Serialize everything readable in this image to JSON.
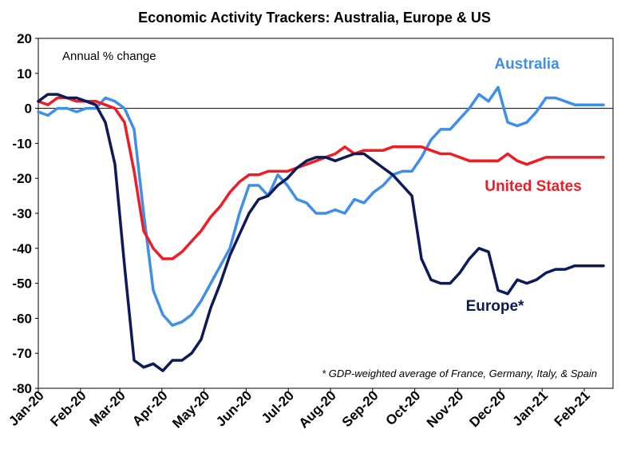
{
  "chart_data": {
    "type": "line",
    "title": "Economic Activity Trackers: Australia, Europe & US",
    "unit_label": "Annual % change",
    "footnote": "* GDP-weighted average of France, Germany, Italy, & Spain",
    "ylim": [
      -80,
      20
    ],
    "yticks": [
      20,
      10,
      0,
      -10,
      -20,
      -30,
      -40,
      -50,
      -60,
      -70,
      -80
    ],
    "xlim": [
      0,
      60
    ],
    "xticks": [
      {
        "label": "Jan-20",
        "x": 0
      },
      {
        "label": "Feb-20",
        "x": 4.4
      },
      {
        "label": "Mar-20",
        "x": 8.5
      },
      {
        "label": "Apr-20",
        "x": 12.9
      },
      {
        "label": "May-20",
        "x": 17.3
      },
      {
        "label": "Jun-20",
        "x": 21.7
      },
      {
        "label": "Jul-20",
        "x": 26.1
      },
      {
        "label": "Aug-20",
        "x": 30.5
      },
      {
        "label": "Sep-20",
        "x": 34.9
      },
      {
        "label": "Oct-20",
        "x": 39.3
      },
      {
        "label": "Nov-20",
        "x": 43.8
      },
      {
        "label": "Dec-20",
        "x": 48.2
      },
      {
        "label": "Jan-21",
        "x": 52.6
      },
      {
        "label": "Feb-21",
        "x": 57.0
      }
    ],
    "grid": false,
    "legend": "inline labels",
    "series": [
      {
        "name": "Australia",
        "color": "#3f8ee8",
        "x": [
          0,
          1,
          2,
          3,
          4,
          5,
          6,
          7,
          8,
          9,
          10,
          11,
          12,
          13,
          14,
          15,
          16,
          17,
          18,
          19,
          20,
          21,
          22,
          23,
          24,
          25,
          26,
          27,
          28,
          29,
          30,
          31,
          32,
          33,
          34,
          35,
          36,
          37,
          38,
          39,
          40,
          41,
          42,
          43,
          44,
          45,
          46,
          47,
          48,
          49,
          50,
          51,
          52,
          53,
          54,
          55,
          56,
          57,
          58,
          59
        ],
        "values": [
          -1,
          -2,
          0,
          0,
          -1,
          0,
          0,
          3,
          2,
          0,
          -6,
          -30,
          -52,
          -59,
          -62,
          -61,
          -59,
          -55,
          -50,
          -45,
          -40,
          -30,
          -22,
          -22,
          -25,
          -19,
          -22,
          -26,
          -27,
          -30,
          -30,
          -29,
          -30,
          -26,
          -27,
          -24,
          -22,
          -19,
          -18,
          -18,
          -14,
          -9,
          -6,
          -6,
          -3,
          0,
          4,
          2,
          6,
          -4,
          -5,
          -4,
          -1,
          3,
          3,
          2,
          1,
          1,
          1,
          1
        ]
      },
      {
        "name": "United States",
        "color": "#ee1c25",
        "x": [
          0,
          1,
          2,
          3,
          4,
          5,
          6,
          7,
          8,
          9,
          10,
          11,
          12,
          13,
          14,
          15,
          16,
          17,
          18,
          19,
          20,
          21,
          22,
          23,
          24,
          25,
          26,
          27,
          28,
          29,
          30,
          31,
          32,
          33,
          34,
          35,
          36,
          37,
          38,
          39,
          40,
          41,
          42,
          43,
          44,
          45,
          46,
          47,
          48,
          49,
          50,
          51,
          52,
          53,
          54,
          55,
          56,
          57,
          58,
          59
        ],
        "values": [
          2,
          1,
          3,
          3,
          2,
          2,
          2,
          1,
          0,
          -4,
          -18,
          -35,
          -40,
          -43,
          -43,
          -41,
          -38,
          -35,
          -31,
          -28,
          -24,
          -21,
          -19,
          -19,
          -18,
          -18,
          -18,
          -17,
          -16,
          -15,
          -14,
          -13,
          -11,
          -13,
          -12,
          -12,
          -12,
          -11,
          -11,
          -11,
          -11,
          -12,
          -13,
          -13,
          -14,
          -15,
          -15,
          -15,
          -15,
          -13,
          -15,
          -16,
          -15,
          -14,
          -14,
          -14,
          -14,
          -14,
          -14,
          -14
        ]
      },
      {
        "name": "Europe*",
        "color": "#0d1a5a",
        "x": [
          0,
          1,
          2,
          3,
          4,
          5,
          6,
          7,
          8,
          9,
          10,
          11,
          12,
          13,
          14,
          15,
          16,
          17,
          18,
          19,
          20,
          21,
          22,
          23,
          24,
          25,
          26,
          27,
          28,
          29,
          30,
          31,
          32,
          33,
          34,
          35,
          36,
          37,
          38,
          39,
          40,
          41,
          42,
          43,
          44,
          45,
          46,
          47,
          48,
          49,
          50,
          51,
          52,
          53,
          54,
          55,
          56,
          57,
          58,
          59
        ],
        "values": [
          2,
          4,
          4,
          3,
          3,
          2,
          1,
          -4,
          -16,
          -45,
          -72,
          -74,
          -73,
          -75,
          -72,
          -72,
          -70,
          -66,
          -57,
          -50,
          -42,
          -36,
          -30,
          -26,
          -25,
          -22,
          -20,
          -17,
          -15,
          -14,
          -14,
          -15,
          -14,
          -13,
          -13,
          -15,
          -17,
          -19,
          -22,
          -25,
          -43,
          -49,
          -50,
          -50,
          -47,
          -43,
          -40,
          -41,
          -52,
          -53,
          -49,
          -50,
          -49,
          -47,
          -46,
          -46,
          -45,
          -45,
          -45,
          -45
        ]
      }
    ]
  }
}
